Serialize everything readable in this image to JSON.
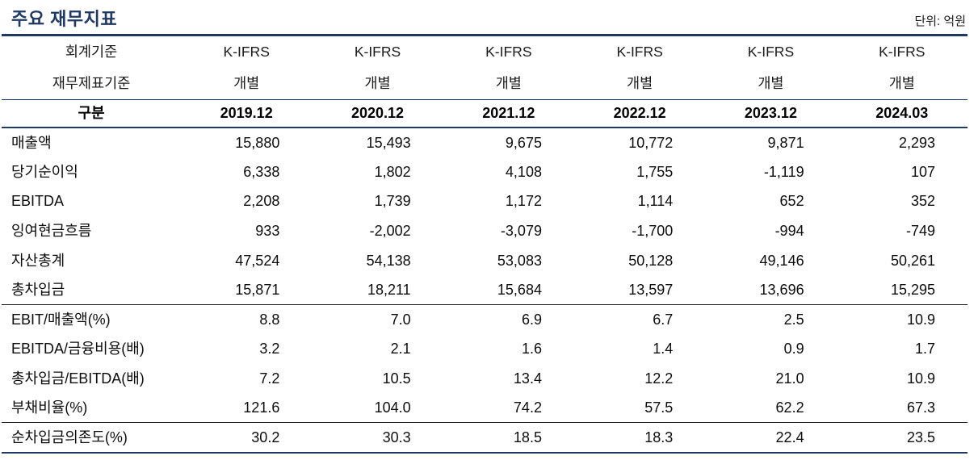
{
  "title": "주요 재무지표",
  "unit_label": "단위: 억원",
  "colors": {
    "accent_navy": "#1F3864",
    "text": "#111111"
  },
  "table": {
    "header": {
      "row1_label": "회계기준",
      "row1_values": [
        "K-IFRS",
        "K-IFRS",
        "K-IFRS",
        "K-IFRS",
        "K-IFRS",
        "K-IFRS"
      ],
      "row2_label": "재무제표기준",
      "row2_values": [
        "개별",
        "개별",
        "개별",
        "개별",
        "개별",
        "개별"
      ],
      "gubun_label": "구분",
      "periods": [
        "2019.12",
        "2020.12",
        "2021.12",
        "2022.12",
        "2023.12",
        "2024.03"
      ]
    },
    "rows": [
      {
        "label": "매출액",
        "values": [
          "15,880",
          "15,493",
          "9,675",
          "10,772",
          "9,871",
          "2,293"
        ],
        "separator_below": false
      },
      {
        "label": "당기순이익",
        "values": [
          "6,338",
          "1,802",
          "4,108",
          "1,755",
          "-1,119",
          "107"
        ],
        "separator_below": false
      },
      {
        "label": "EBITDA",
        "values": [
          "2,208",
          "1,739",
          "1,172",
          "1,114",
          "652",
          "352"
        ],
        "separator_below": false
      },
      {
        "label": "잉여현금흐름",
        "values": [
          "933",
          "-2,002",
          "-3,079",
          "-1,700",
          "-994",
          "-749"
        ],
        "separator_below": false
      },
      {
        "label": "자산총계",
        "values": [
          "47,524",
          "54,138",
          "53,083",
          "50,128",
          "49,146",
          "50,261"
        ],
        "separator_below": false
      },
      {
        "label": "총차입금",
        "values": [
          "15,871",
          "18,211",
          "15,684",
          "13,597",
          "13,696",
          "15,295"
        ],
        "separator_below": true
      },
      {
        "label": "EBIT/매출액(%)",
        "values": [
          "8.8",
          "7.0",
          "6.9",
          "6.7",
          "2.5",
          "10.9"
        ],
        "separator_below": false
      },
      {
        "label": "EBITDA/금융비용(배)",
        "values": [
          "3.2",
          "2.1",
          "1.6",
          "1.4",
          "0.9",
          "1.7"
        ],
        "separator_below": false
      },
      {
        "label": "총차입금/EBITDA(배)",
        "values": [
          "7.2",
          "10.5",
          "13.4",
          "12.2",
          "21.0",
          "10.9"
        ],
        "separator_below": false
      },
      {
        "label": "부채비율(%)",
        "values": [
          "121.6",
          "104.0",
          "74.2",
          "57.5",
          "62.2",
          "67.3"
        ],
        "separator_below": true
      },
      {
        "label": "순차입금의존도(%)",
        "values": [
          "30.2",
          "30.3",
          "18.5",
          "18.3",
          "22.4",
          "23.5"
        ],
        "separator_below": false
      }
    ]
  }
}
